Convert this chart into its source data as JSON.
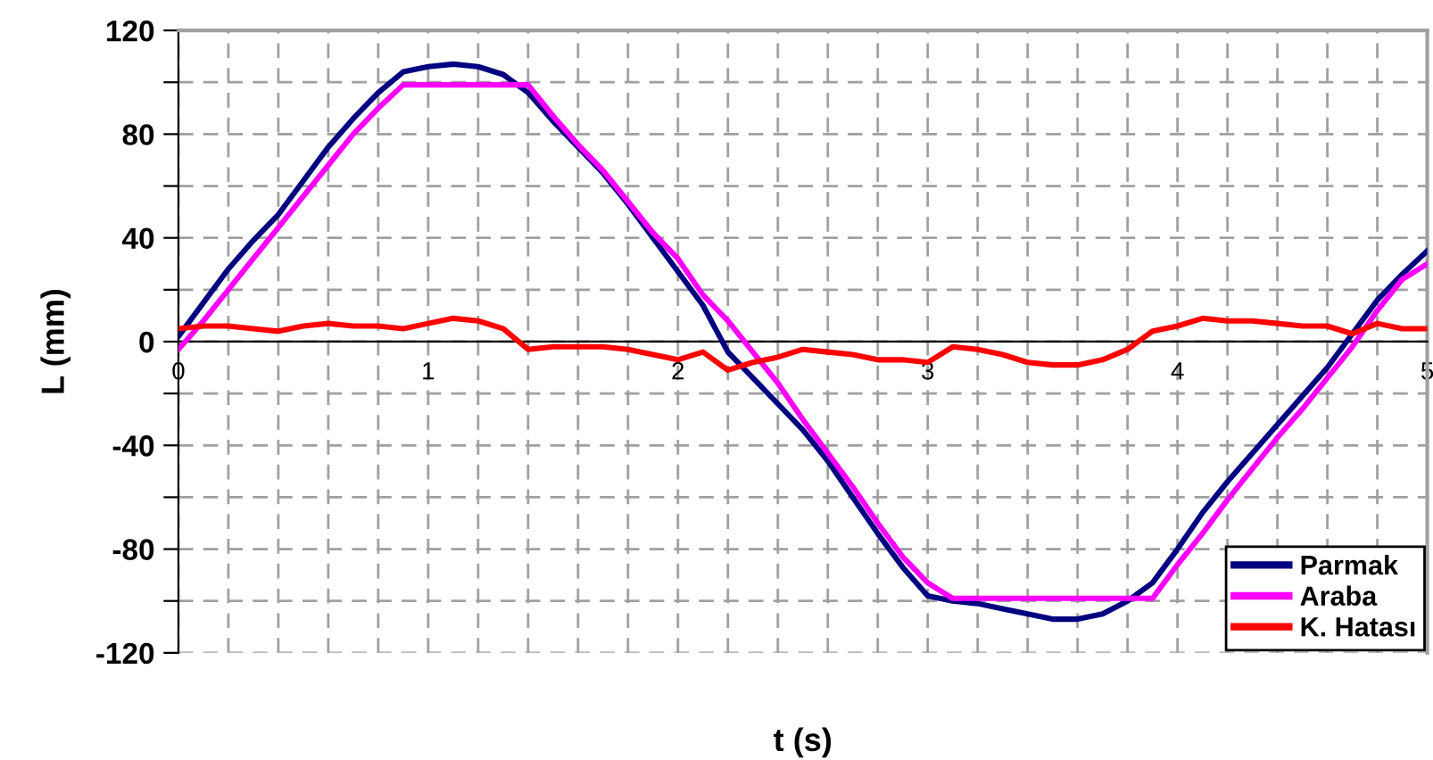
{
  "chart_data": {
    "type": "line",
    "xlabel": "t (s)",
    "ylabel": "L (mm)",
    "xlim": [
      0,
      5
    ],
    "ylim": [
      -120,
      120
    ],
    "xticks": [
      0,
      {
        "value": 0.2,
        "label": null
      },
      {
        "value": 0.4,
        "label": null
      },
      {
        "value": 0.6,
        "label": null
      },
      {
        "value": 0.8,
        "label": null
      },
      1,
      {
        "value": 1.2,
        "label": null
      },
      {
        "value": 1.4,
        "label": null
      },
      {
        "value": 1.6,
        "label": null
      },
      {
        "value": 1.8,
        "label": null
      },
      2,
      {
        "value": 2.2,
        "label": null
      },
      {
        "value": 2.4,
        "label": null
      },
      {
        "value": 2.6,
        "label": null
      },
      {
        "value": 2.8,
        "label": null
      },
      3,
      {
        "value": 3.2,
        "label": null
      },
      {
        "value": 3.4,
        "label": null
      },
      {
        "value": 3.6,
        "label": null
      },
      {
        "value": 3.8,
        "label": null
      },
      4,
      {
        "value": 4.2,
        "label": null
      },
      {
        "value": 4.4,
        "label": null
      },
      {
        "value": 4.6,
        "label": null
      },
      {
        "value": 4.8,
        "label": null
      },
      5
    ],
    "yticks": [
      -120,
      {
        "value": -100,
        "label": null
      },
      -80,
      {
        "value": -60,
        "label": null
      },
      -40,
      {
        "value": -20,
        "label": null
      },
      0,
      {
        "value": 20,
        "label": null
      },
      40,
      {
        "value": 60,
        "label": null
      },
      80,
      {
        "value": 100,
        "label": null
      },
      120
    ],
    "x": [
      0,
      0.1,
      0.2,
      0.3,
      0.4,
      0.5,
      0.6,
      0.7,
      0.8,
      0.9,
      1.0,
      1.1,
      1.2,
      1.3,
      1.4,
      1.5,
      1.6,
      1.7,
      1.8,
      1.9,
      2.0,
      2.1,
      2.2,
      2.3,
      2.4,
      2.5,
      2.6,
      2.7,
      2.8,
      2.9,
      3.0,
      3.1,
      3.2,
      3.3,
      3.4,
      3.5,
      3.6,
      3.7,
      3.8,
      3.9,
      4.0,
      4.1,
      4.2,
      4.3,
      4.4,
      4.5,
      4.6,
      4.7,
      4.8,
      4.9,
      5.0
    ],
    "grid": true,
    "legend": "bottom right",
    "marker": "none",
    "line_style": "solid",
    "series": [
      {
        "name": "Parmak",
        "color": "#000080",
        "values": [
          2,
          15,
          28,
          39,
          49,
          62,
          75,
          86,
          96,
          104,
          106,
          107,
          106,
          103,
          96,
          85,
          75,
          65,
          53,
          40,
          27,
          14,
          -4,
          -14,
          -24,
          -34,
          -46,
          -60,
          -74,
          -87,
          -98,
          -100,
          -101,
          -103,
          -105,
          -107,
          -107,
          -105,
          -100,
          -93,
          -80,
          -66,
          -54,
          -43,
          -32,
          -21,
          -10,
          3,
          16,
          26,
          35
        ]
      },
      {
        "name": "Araba",
        "color": "#ff00ff",
        "values": [
          -3,
          8,
          20,
          32,
          44,
          56,
          68,
          80,
          90,
          99,
          99,
          99,
          99,
          99,
          99,
          87,
          76,
          66,
          54,
          42,
          32,
          18,
          8,
          -4,
          -16,
          -30,
          -43,
          -56,
          -70,
          -83,
          -93,
          -99,
          -99,
          -99,
          -99,
          -99,
          -99,
          -99,
          -99,
          -99,
          -86,
          -74,
          -61,
          -49,
          -37,
          -26,
          -14,
          -2,
          12,
          24,
          30
        ]
      },
      {
        "name": "K. Hatası",
        "color": "#ff0000",
        "values": [
          5,
          6,
          6,
          5,
          4,
          6,
          7,
          6,
          6,
          5,
          7,
          9,
          8,
          5,
          -3,
          -2,
          -2,
          -2,
          -3,
          -5,
          -7,
          -4,
          -11,
          -8,
          -6,
          -3,
          -4,
          -5,
          -7,
          -7,
          -8,
          -2,
          -3,
          -5,
          -8,
          -9,
          -9,
          -7,
          -3,
          4,
          6,
          9,
          8,
          8,
          7,
          6,
          6,
          3,
          7,
          5,
          5
        ]
      }
    ]
  }
}
